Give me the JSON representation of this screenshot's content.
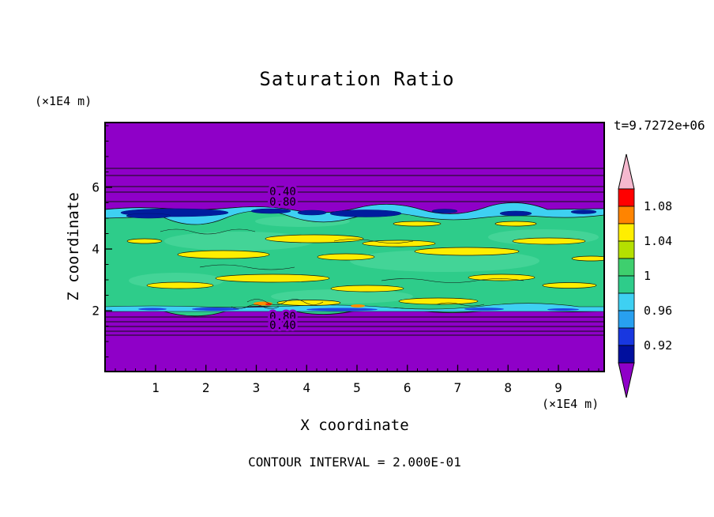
{
  "title": "Saturation Ratio",
  "annotations": {
    "time": "t=9.7272e+06",
    "contour_interval": "CONTOUR INTERVAL = 2.000E-01"
  },
  "axes": {
    "x": {
      "label": "X coordinate",
      "unit": "(×1E4 m)",
      "ticks": [
        "1",
        "2",
        "3",
        "4",
        "5",
        "6",
        "7",
        "8",
        "9"
      ],
      "range": [
        0,
        9.9
      ]
    },
    "z": {
      "label": "Z coordinate",
      "unit": "(×1E4 m)",
      "ticks": [
        "2",
        "4",
        "6"
      ],
      "range": [
        0,
        8.1
      ]
    }
  },
  "chart_data": {
    "type": "heatmap",
    "title": "Saturation Ratio",
    "xlabel": "X coordinate (×1E4 m)",
    "ylabel": "Z coordinate (×1E4 m)",
    "time_annotation": "t=9.7272e+06",
    "contour_interval": 0.2,
    "labeled_contours": [
      0.4,
      0.8,
      0.8,
      0.4
    ],
    "contour_labels": [
      "0.40",
      "0.80",
      "0.80",
      "0.40"
    ],
    "colorbar": {
      "min": 0.9,
      "max": 1.1,
      "tick_values": [
        "1.08",
        "1.04",
        "1",
        "0.96",
        "0.92"
      ],
      "segment_colors": [
        "#ff0000",
        "#ff8400",
        "#ffee00",
        "#b5e000",
        "#3ecf6e",
        "#2ecc8a",
        "#3ed0f2",
        "#28a0f0",
        "#1837e0",
        "#000f9e"
      ],
      "arrow_top_color": "#f5b8ce",
      "arrow_bottom_color": "#8f00c8"
    },
    "field_colors": {
      "background_purple": "#8f00c8",
      "band_green": "#2ecc8a",
      "band_cyan": "#3ed0f2",
      "band_navy": "#001d9e",
      "streak_yellow": "#ffee00"
    },
    "field_description": [
      {
        "z_range": [
          0,
          2
        ],
        "saturation": "low values rising through the 0.40 and 0.80 contours (purple region below band)"
      },
      {
        "z_range": [
          2,
          5.4
        ],
        "saturation": "mottled band ~0.92-1.06: mostly ~1.0 green, cyan ~0.96 along top edge, navy ~0.92 patches, yellow ~1.04 streaks"
      },
      {
        "z_range": [
          5.4,
          8.1
        ],
        "saturation": "low values falling through the 0.80 and 0.40 contours (purple region above band)"
      }
    ]
  }
}
